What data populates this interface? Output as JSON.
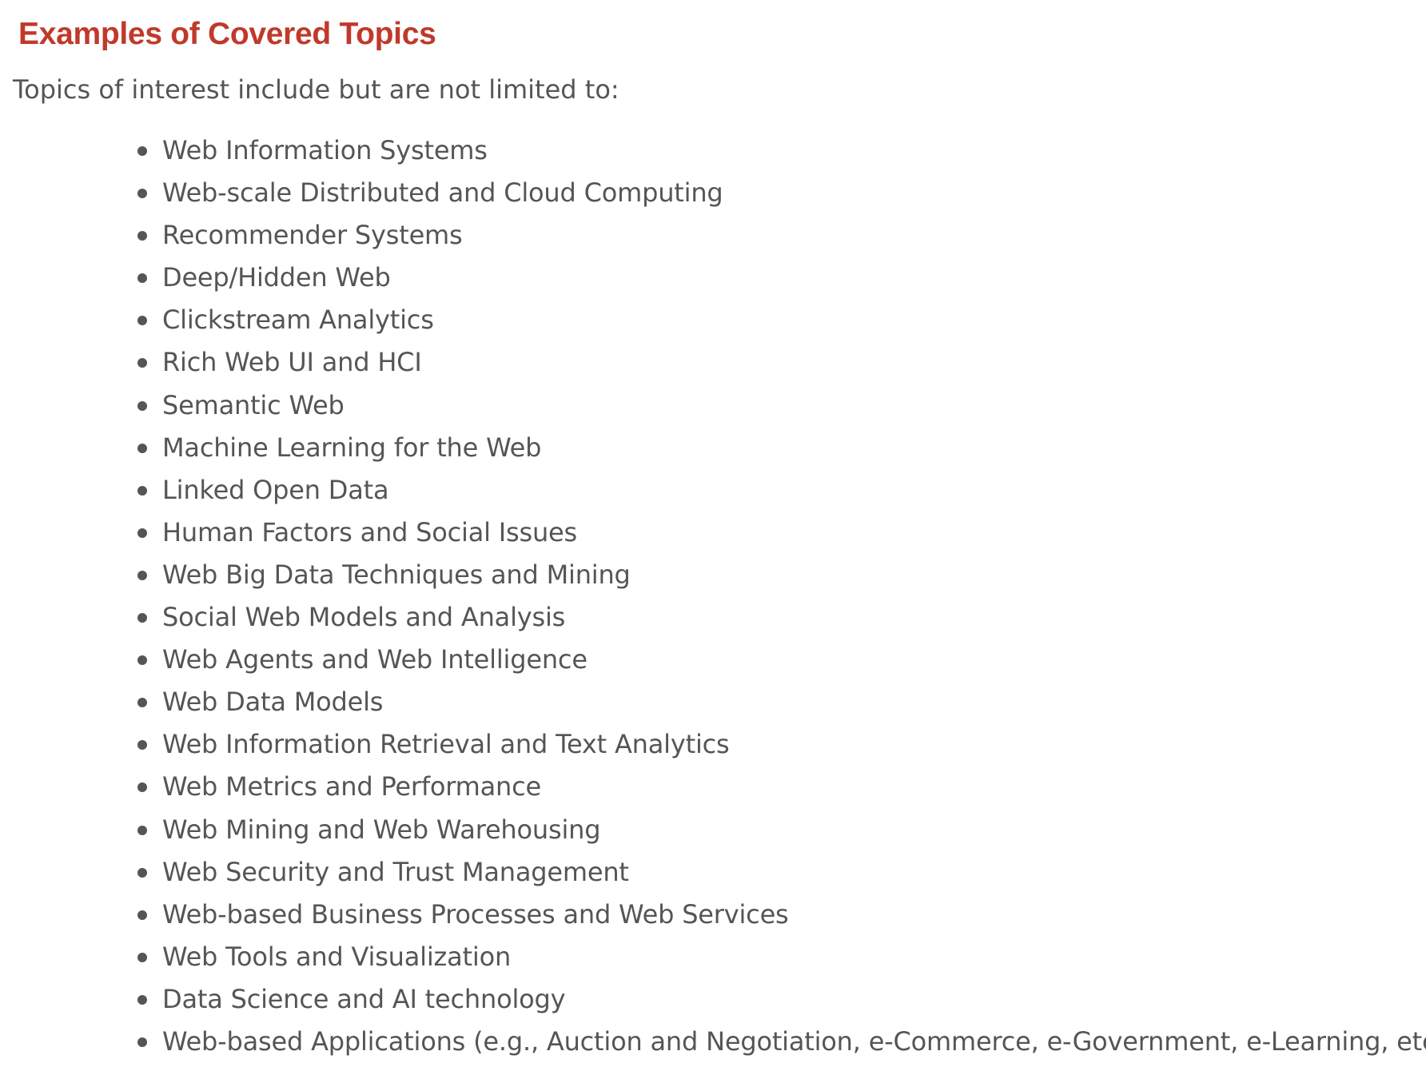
{
  "section": {
    "heading": "Examples of Covered Topics",
    "intro": "Topics of interest include but are not limited to:",
    "bullet_icon": "bullet-dot-icon",
    "heading_color": "#c0392b",
    "text_color": "#555555",
    "topics": [
      "Web Information Systems",
      "Web-scale Distributed and Cloud Computing",
      "Recommender Systems",
      "Deep/Hidden Web",
      "Clickstream Analytics",
      "Rich Web UI and HCI",
      "Semantic Web",
      "Machine Learning for the Web",
      "Linked Open Data",
      "Human Factors and Social Issues",
      "Web Big Data Techniques and Mining",
      "Social Web Models and Analysis",
      "Web Agents and Web Intelligence",
      "Web Data Models",
      "Web Information Retrieval and Text Analytics",
      "Web Metrics and Performance",
      "Web Mining and Web Warehousing",
      "Web Security and Trust Management",
      "Web-based Business Processes and Web Services",
      "Web Tools and Visualization",
      "Data Science and AI technology",
      "Web-based Applications (e.g., Auction and Negotiation, e-Commerce, e-Government, e-Learning, etc.)"
    ]
  }
}
